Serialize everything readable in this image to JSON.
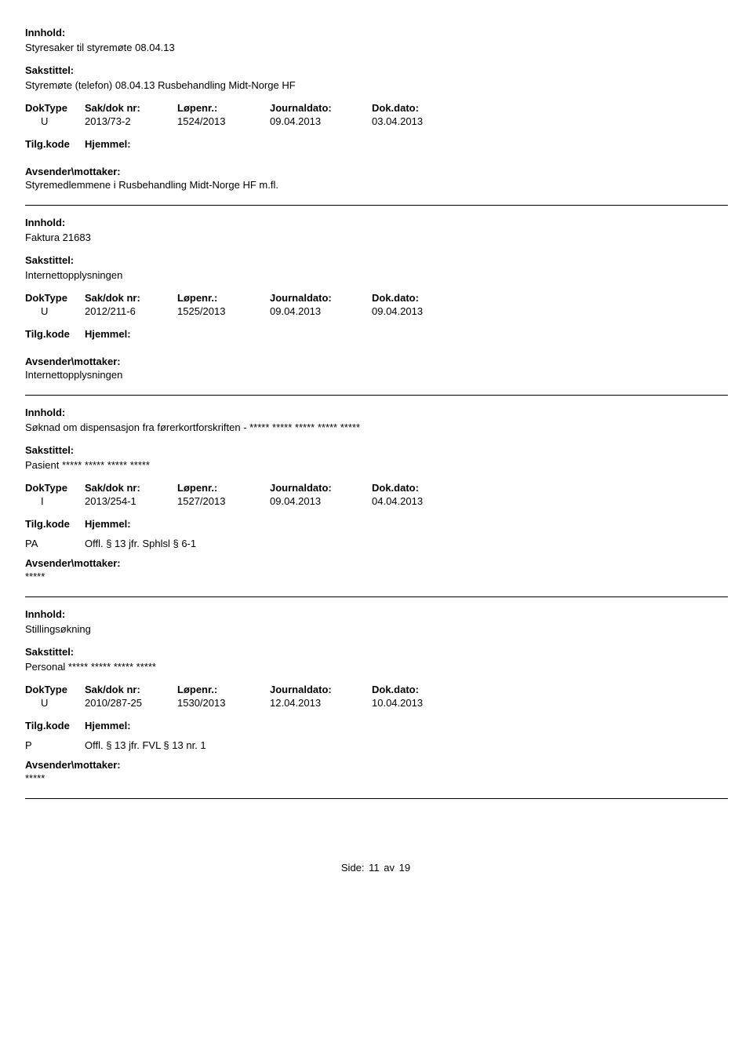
{
  "labels": {
    "innhold": "Innhold:",
    "sakstittel": "Sakstittel:",
    "doktype": "DokType",
    "sakdoknr": "Sak/dok nr:",
    "lopenr": "Løpenr.:",
    "journaldato": "Journaldato:",
    "dokdato": "Dok.dato:",
    "tilgkode": "Tilg.kode",
    "hjemmel": "Hjemmel:",
    "avsender": "Avsender\\mottaker:"
  },
  "entries": [
    {
      "innhold": "Styresaker til styremøte 08.04.13",
      "sakstittel": "Styremøte (telefon) 08.04.13 Rusbehandling Midt-Norge HF",
      "doktype": "U",
      "sakdoknr": "2013/73-2",
      "lopenr": "1524/2013",
      "journaldato": "09.04.2013",
      "dokdato": "03.04.2013",
      "tilgkode": "",
      "hjemmel": "",
      "avsender": "Styremedlemmene i Rusbehandling Midt-Norge HF m.fl."
    },
    {
      "innhold": "Faktura 21683",
      "sakstittel": "Internettopplysningen",
      "doktype": "U",
      "sakdoknr": "2012/211-6",
      "lopenr": "1525/2013",
      "journaldato": "09.04.2013",
      "dokdato": "09.04.2013",
      "tilgkode": "",
      "hjemmel": "",
      "avsender": "Internettopplysningen"
    },
    {
      "innhold": "Søknad om dispensasjon fra førerkortforskriften - ***** ***** ***** ***** *****",
      "sakstittel": "Pasient ***** ***** ***** *****",
      "doktype": "I",
      "sakdoknr": "2013/254-1",
      "lopenr": "1527/2013",
      "journaldato": "09.04.2013",
      "dokdato": "04.04.2013",
      "tilgkode": "PA",
      "hjemmel": "Offl. § 13 jfr. Sphlsl  § 6-1",
      "avsender": "*****"
    },
    {
      "innhold": "Stillingsøkning",
      "sakstittel": "Personal ***** ***** ***** *****",
      "doktype": "U",
      "sakdoknr": "2010/287-25",
      "lopenr": "1530/2013",
      "journaldato": "12.04.2013",
      "dokdato": "10.04.2013",
      "tilgkode": "P",
      "hjemmel": "Offl. § 13 jfr. FVL § 13 nr. 1",
      "avsender": "*****"
    }
  ],
  "footer": {
    "side_label": "Side:",
    "page_current": "11",
    "av_label": "av",
    "page_total": "19"
  }
}
